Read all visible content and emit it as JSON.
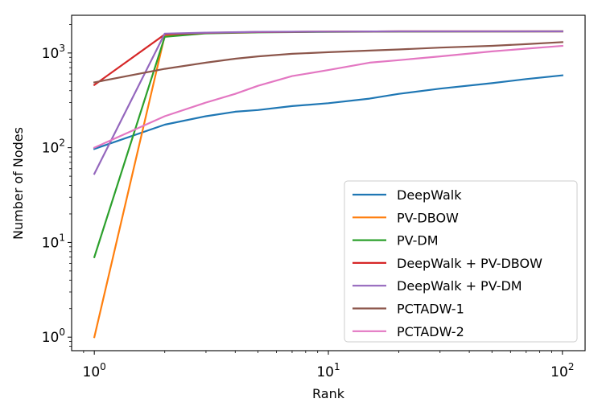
{
  "chart_data": {
    "type": "line",
    "xscale": "log",
    "yscale": "log",
    "xlabel": "Rank",
    "ylabel": "Number of Nodes",
    "xlim": [
      0.8,
      125
    ],
    "ylim": [
      0.72,
      2500
    ],
    "xticks": [
      {
        "value": 1,
        "base": "10",
        "exp": "0"
      },
      {
        "value": 10,
        "base": "10",
        "exp": "1"
      },
      {
        "value": 100,
        "base": "10",
        "exp": "2"
      }
    ],
    "yticks": [
      {
        "value": 1,
        "base": "10",
        "exp": "0"
      },
      {
        "value": 10,
        "base": "10",
        "exp": "1"
      },
      {
        "value": 100,
        "base": "10",
        "exp": "2"
      },
      {
        "value": 1000,
        "base": "10",
        "exp": "3"
      }
    ],
    "grid": false,
    "legend_position": "lower-right",
    "series": [
      {
        "name": "DeepWalk",
        "color": "#1f77b4",
        "x": [
          1,
          2,
          3,
          4,
          5,
          7,
          10,
          15,
          20,
          30,
          50,
          70,
          100
        ],
        "y": [
          97,
          175,
          215,
          240,
          250,
          275,
          295,
          330,
          370,
          420,
          480,
          530,
          580
        ]
      },
      {
        "name": "PV-DBOW",
        "color": "#ff7f0e",
        "x": [
          1,
          2,
          3,
          5,
          10,
          20,
          50,
          100
        ],
        "y": [
          1,
          1530,
          1620,
          1660,
          1680,
          1690,
          1690,
          1690
        ]
      },
      {
        "name": "PV-DM",
        "color": "#2ca02c",
        "x": [
          1,
          2,
          3,
          5,
          10,
          20,
          50,
          100
        ],
        "y": [
          7,
          1480,
          1610,
          1650,
          1670,
          1680,
          1685,
          1690
        ]
      },
      {
        "name": "DeepWalk + PV-DBOW",
        "color": "#d62728",
        "x": [
          1,
          2,
          3,
          5,
          10,
          20,
          50,
          100
        ],
        "y": [
          460,
          1570,
          1630,
          1660,
          1680,
          1690,
          1690,
          1690
        ]
      },
      {
        "name": "DeepWalk + PV-DM",
        "color": "#9467bd",
        "x": [
          1,
          2,
          3,
          5,
          10,
          20,
          50,
          100
        ],
        "y": [
          53,
          1600,
          1640,
          1670,
          1680,
          1690,
          1690,
          1690
        ]
      },
      {
        "name": "PCTADW-1",
        "color": "#8c564b",
        "x": [
          1,
          2,
          3,
          4,
          5,
          7,
          10,
          15,
          20,
          30,
          50,
          70,
          100
        ],
        "y": [
          490,
          680,
          790,
          870,
          920,
          980,
          1020,
          1060,
          1090,
          1140,
          1190,
          1240,
          1300
        ]
      },
      {
        "name": "PCTADW-2",
        "color": "#e377c2",
        "x": [
          1,
          2,
          3,
          4,
          5,
          7,
          10,
          15,
          20,
          30,
          50,
          70,
          100
        ],
        "y": [
          100,
          215,
          300,
          370,
          450,
          570,
          660,
          790,
          840,
          920,
          1040,
          1110,
          1190
        ]
      }
    ]
  }
}
